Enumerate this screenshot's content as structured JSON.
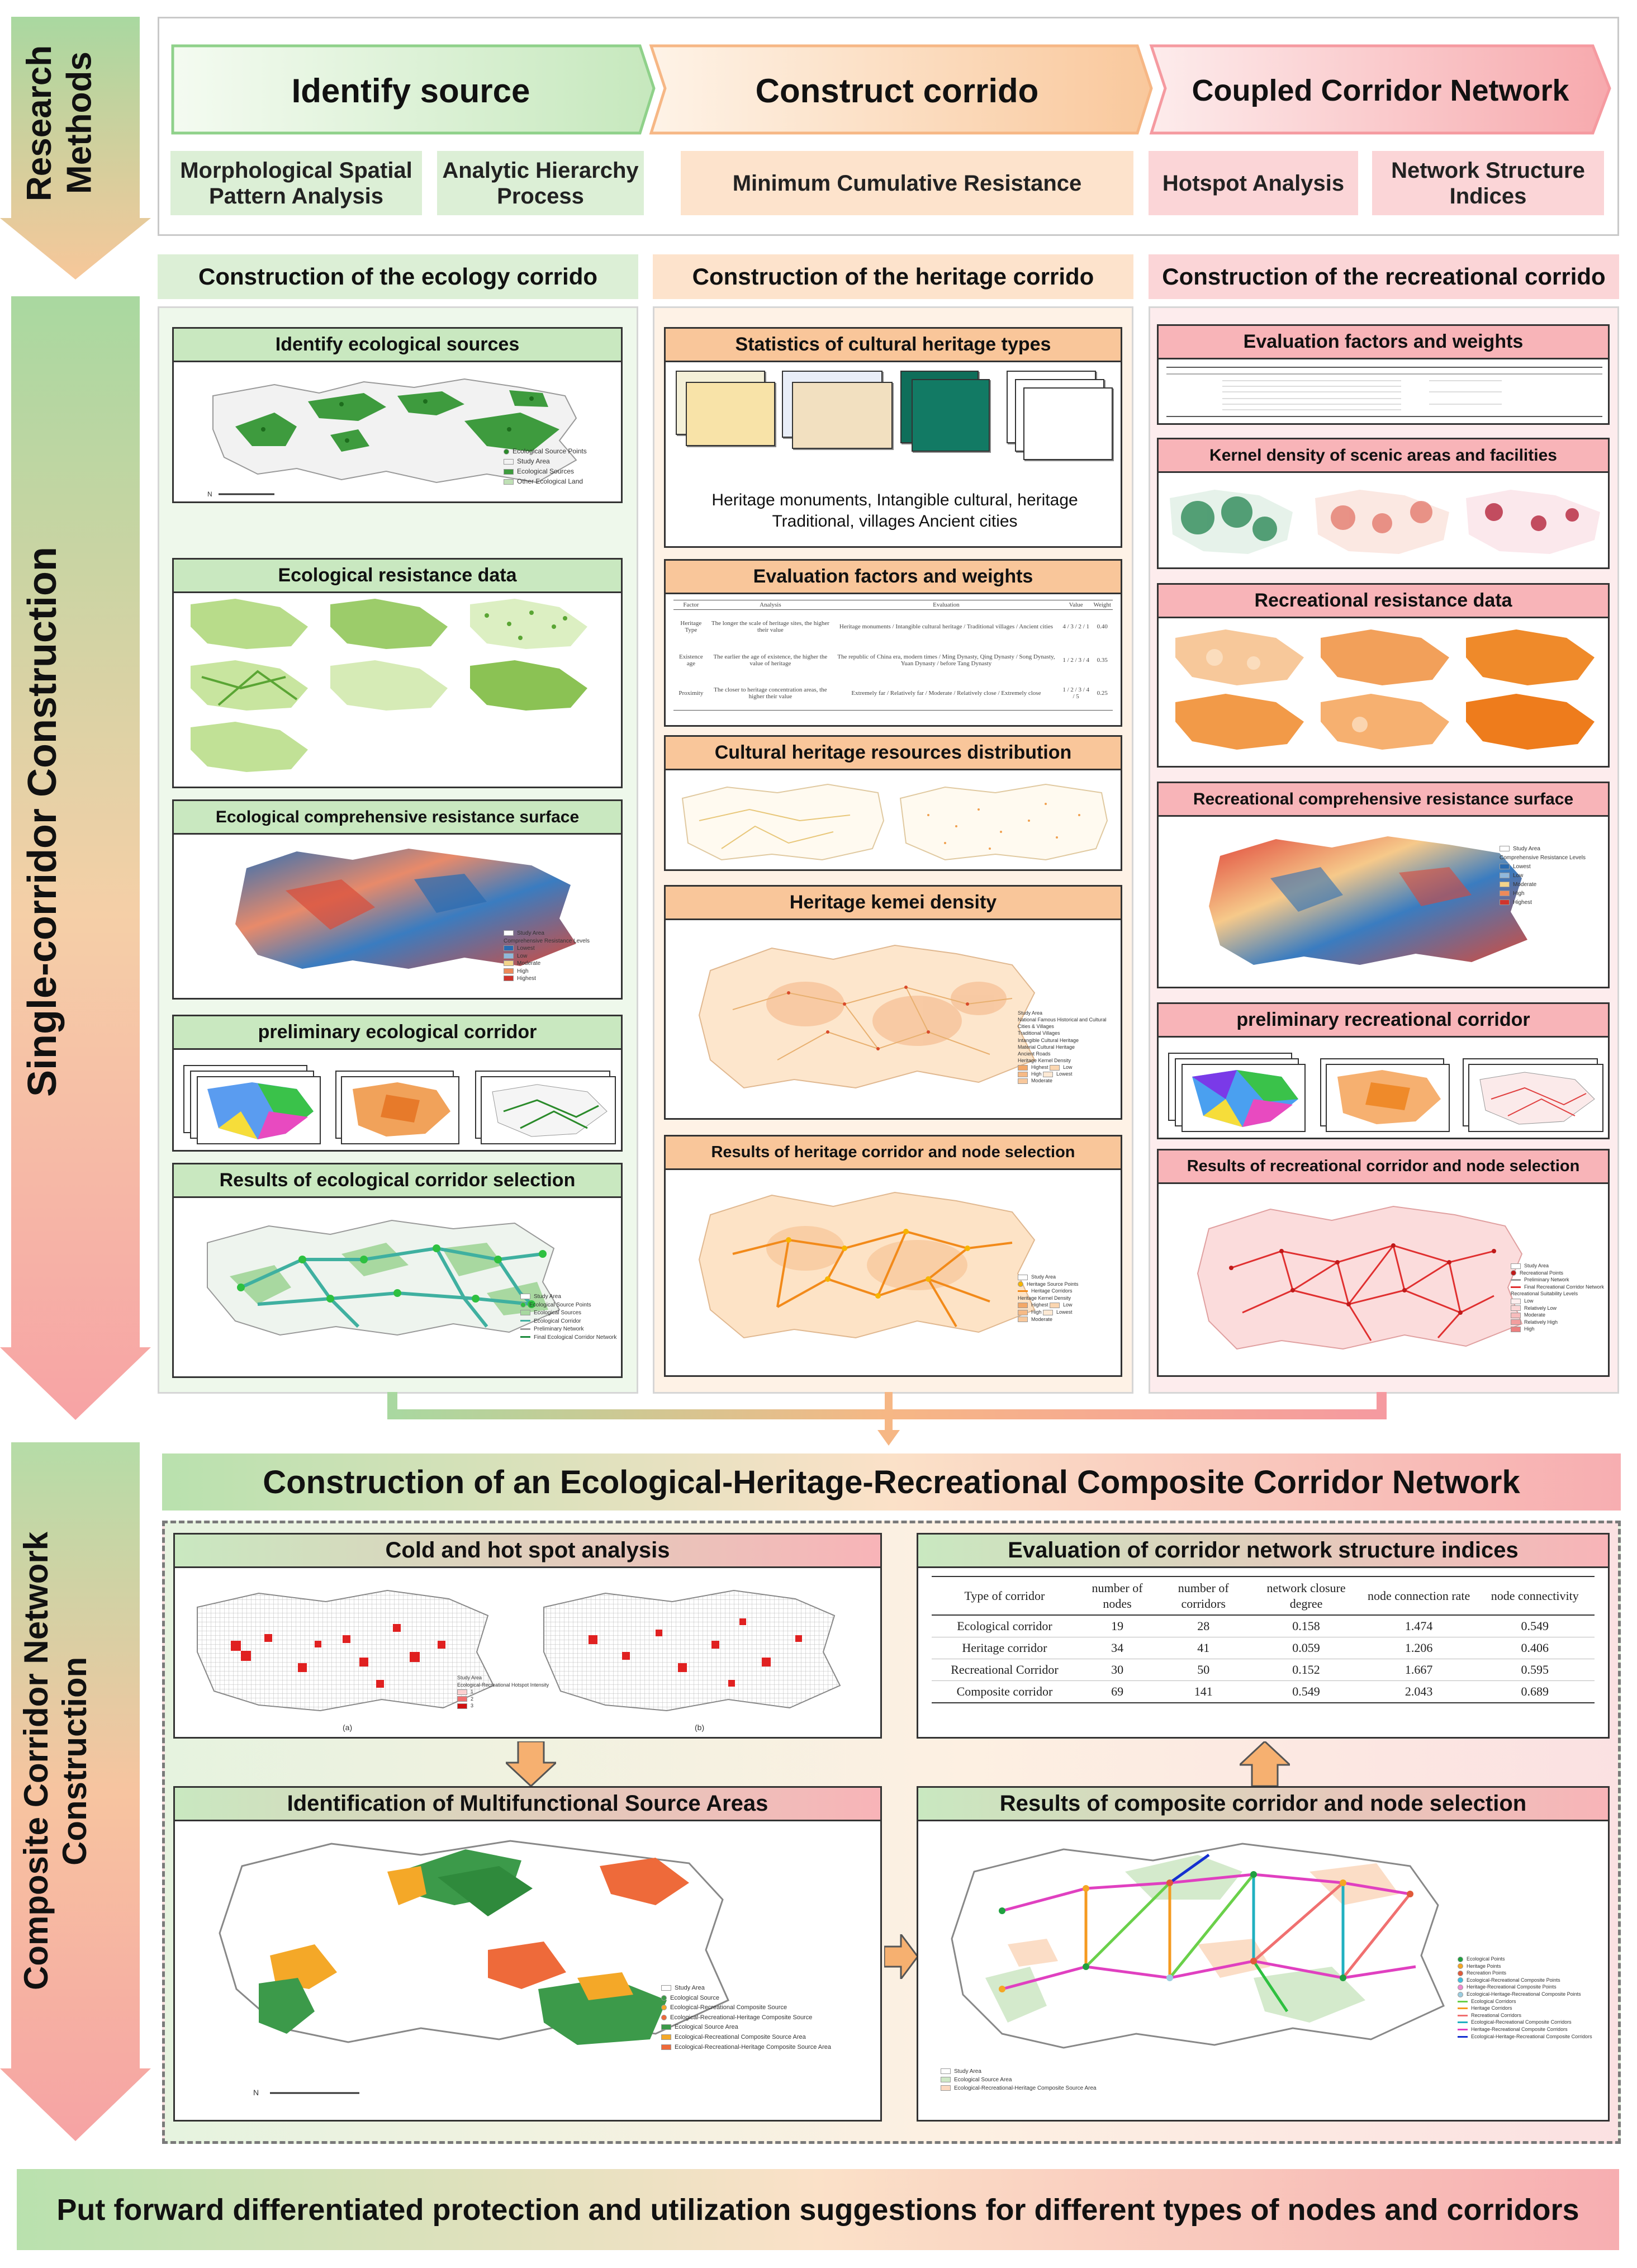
{
  "left_stages": [
    {
      "label": "Research Methods"
    },
    {
      "label": "Single-corridor Construction"
    },
    {
      "label": "Composite Corridor Network Construction"
    }
  ],
  "research_methods": {
    "stages": [
      "Identify source",
      "Construct corrido",
      "Coupled Corridor Network"
    ],
    "methods": [
      "Morphological Spatial Pattern Analysis",
      "Analytic Hierarchy Process",
      "Minimum Cumulative Resistance",
      "Hotspot Analysis",
      "Network Structure Indices"
    ]
  },
  "columns": {
    "ecology": {
      "title": "Construction of the ecology corrido",
      "cards": [
        "Identify ecological sources",
        "Ecological resistance data",
        "Ecological comprehensive resistance surface",
        "preliminary ecological corridor",
        "Results of ecological corridor selection"
      ],
      "legends": {
        "sources": [
          "Ecological Source Points",
          "Study Area",
          "Ecological Sources",
          "Other Ecological Land"
        ],
        "resistance": [
          "Study Area",
          "Comprehensive Resistance Levels",
          "Lowest",
          "Low",
          "Moderate",
          "High",
          "Highest"
        ],
        "results": [
          "Study Area",
          "Ecological Source Points",
          "Ecological Sources",
          "Ecological Corridor",
          "Preliminary Network",
          "Final Ecological Corridor Network"
        ]
      }
    },
    "heritage": {
      "title": "Construction of the heritage corrido",
      "cards": [
        "Statistics of cultural heritage types",
        "Evaluation factors and weights",
        "Cultural heritage resources distribution",
        "Heritage kemei density",
        "Results of heritage corridor and node selection"
      ],
      "stats_caption": "Heritage monuments, Intangible cultural, heritage Traditional, villages Ancient cities",
      "eval_table": {
        "headers": [
          "Factor",
          "Analysis",
          "Evaluation",
          "Value",
          "Weight"
        ],
        "rows": [
          [
            "Heritage Type",
            "The longer the scale of heritage sites, the higher their value",
            "Heritage monuments / Intangible cultural heritage / Traditional villages / Ancient cities",
            "4 / 3 / 2 / 1",
            "0.40"
          ],
          [
            "Existence age",
            "The earlier the age of existence, the higher the value of heritage",
            "The republic of China era, modern times / Ming Dynasty, Qing Dynasty / Song Dynasty, Yuan Dynasty / before Tang Dynasty",
            "1 / 2 / 3 / 4",
            "0.35"
          ],
          [
            "Proximity",
            "The closer to heritage concentration areas, the higher their value",
            "Extremely far / Relatively far / Moderate / Relatively close / Extremely close",
            "1 / 2 / 3 / 4 / 5",
            "0.25"
          ]
        ]
      },
      "legends": {
        "density": [
          "Study Area",
          "National Famous Historical and Cultural Cities & Villages",
          "Traditional Villages",
          "Intangible Cultural Heritage",
          "Material Cultural Heritage",
          "Ancient Roads",
          "Heritage Kernel Density",
          "Highest",
          "Low",
          "High",
          "Lowest",
          "Moderate"
        ],
        "results": [
          "Study Area",
          "Heritage Source Points",
          "Heritage Corridors",
          "Heritage Kernel Density",
          "Highest",
          "Low",
          "High",
          "Lowest",
          "Moderate"
        ]
      }
    },
    "recreational": {
      "title": "Construction of the recreational corrido",
      "cards": [
        "Evaluation factors and weights",
        "Kernel density of scenic areas and facilities",
        "Recreational resistance data",
        "Recreational comprehensive resistance surface",
        "preliminary recreational corridor",
        "Results of recreational corridor and node selection"
      ],
      "legends": {
        "resistance": [
          "Study Area",
          "Comprehensive Resistance Levels",
          "Lowest",
          "Low",
          "Moderate",
          "High",
          "Highest"
        ],
        "results": [
          "Study Area",
          "Recreational Points",
          "Preliminary Network",
          "Final Recreational Corridor Network",
          "Recreational Suitability Levels",
          "Low",
          "Relatively Low",
          "Moderate",
          "Relatively High",
          "High"
        ]
      }
    }
  },
  "composite": {
    "title": "Construction of an Ecological-Heritage-Recreational Composite Corridor Network",
    "cards": {
      "hotspot": "Cold and hot spot analysis",
      "indices": "Evaluation of corridor network structure indices",
      "sources": "Identification of Multifunctional Source Areas",
      "results": "Results of composite corridor and node selection"
    },
    "hotspot_labels": [
      "(a)",
      "(b)"
    ],
    "hotspot_legend": [
      "Study Area",
      "Ecological-Recreational Hotspot Intensity",
      "1",
      "2",
      "3"
    ],
    "sources_legend": [
      "Study Area",
      "Ecological Source",
      "Ecological-Recreational Composite Source",
      "Ecological-Recreational-Heritage Composite Source",
      "Ecological Source Area",
      "Ecological-Recreational Composite Source Area",
      "Ecological-Recreational-Heritage Composite Source Area"
    ],
    "results_legend_left": [
      "Study Area",
      "Ecological Source Area",
      "Ecological-Recreational-Heritage Composite Source Area"
    ],
    "results_legend_right": [
      "Ecological Points",
      "Heritage Points",
      "Recreation Points",
      "Ecological-Recreational Composite Points",
      "Heritage-Recreational Composite Points",
      "Ecological-Heritage-Recreational Composite Points",
      "Ecological Corridors",
      "Heritage Corridors",
      "Recreational Corridors",
      "Ecological-Recreational Composite Corridors",
      "Heritage-Recreational Composite Corridors",
      "Ecological-Heritage-Recreational Composite Corridors"
    ],
    "indices_table": {
      "headers": [
        "Type of corridor",
        "number of nodes",
        "number of corridors",
        "network closure degree",
        "node connection rate",
        "node connectivity"
      ],
      "rows": [
        [
          "Ecological corridor",
          "19",
          "28",
          "0.158",
          "1.474",
          "0.549"
        ],
        [
          "Heritage corridor",
          "34",
          "41",
          "0.059",
          "1.206",
          "0.406"
        ],
        [
          "Recreational Corridor",
          "30",
          "50",
          "0.152",
          "1.667",
          "0.595"
        ],
        [
          "Composite corridor",
          "69",
          "141",
          "0.549",
          "2.043",
          "0.689"
        ]
      ]
    }
  },
  "footer": "Put forward differentiated protection and utilization suggestions for different types of nodes and corridors",
  "colors": {
    "green": "#8fd18a",
    "green_light": "#dcf0d6",
    "orange": "#f6b785",
    "orange_light": "#fde3cc",
    "pink": "#f59aa0",
    "pink_light": "#fbd5d7"
  }
}
